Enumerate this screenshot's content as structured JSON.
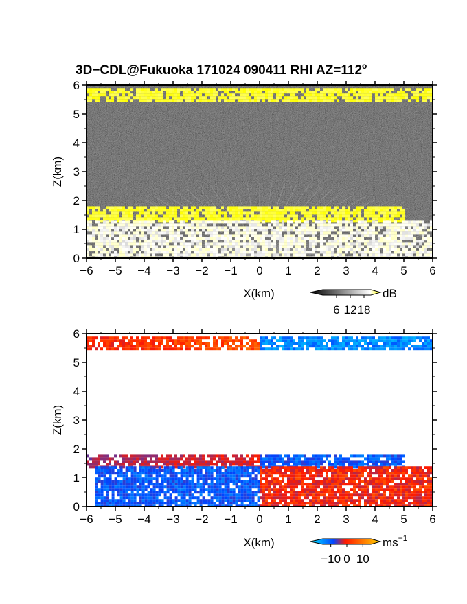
{
  "title": "3D−CDL@Fukuoka 171024 090411 RHI AZ=112",
  "title_superscript": "o",
  "chart_data": [
    {
      "type": "heatmap",
      "panel": "reflectivity",
      "xlabel": "X(km)",
      "ylabel": "Z(km)",
      "xlim": [
        -6,
        6
      ],
      "ylim": [
        0,
        6
      ],
      "xticks": [
        "−6",
        "−5",
        "−4",
        "−3",
        "−2",
        "−1",
        "0",
        "1",
        "2",
        "3",
        "4",
        "5",
        "6"
      ],
      "yticks": [
        "0",
        "1",
        "2",
        "3",
        "4",
        "5",
        "6"
      ],
      "colorbar": {
        "unit": "dB",
        "ticks": [
          "6",
          "12",
          "18"
        ],
        "tick_values": [
          6,
          12,
          18
        ],
        "range": [
          0,
          21
        ],
        "colors": [
          "#000000",
          "#ffffff",
          "#ffff00"
        ]
      },
      "features": [
        {
          "name": "cloud top layer",
          "z_range": [
            5.5,
            5.9
          ],
          "x_range": [
            -6,
            6
          ],
          "level_db": 19
        },
        {
          "name": "boundary layer top",
          "z_range": [
            1.3,
            1.8
          ],
          "x_range": [
            -6,
            5
          ],
          "level_db": 19
        },
        {
          "name": "near-surface echo",
          "z_range": [
            0,
            1.3
          ],
          "x_range": [
            -6,
            6
          ],
          "level_db": 11
        }
      ]
    },
    {
      "type": "heatmap",
      "panel": "doppler velocity",
      "xlabel": "X(km)",
      "ylabel": "Z(km)",
      "xlim": [
        -6,
        6
      ],
      "ylim": [
        0,
        6
      ],
      "xticks": [
        "−6",
        "−5",
        "−4",
        "−3",
        "−2",
        "−1",
        "0",
        "1",
        "2",
        "3",
        "4",
        "5",
        "6"
      ],
      "yticks": [
        "0",
        "1",
        "2",
        "3",
        "4",
        "5",
        "6"
      ],
      "colorbar": {
        "unit": "ms",
        "unit_superscript": "−1",
        "ticks": [
          "−10",
          "0",
          "10"
        ],
        "tick_values": [
          -10,
          0,
          10
        ],
        "range": [
          -15,
          15
        ],
        "colors": [
          "#00e5ff",
          "#0044ff",
          "#ff1a00",
          "#ffd400"
        ]
      },
      "features": [
        {
          "name": "upper layer west",
          "z_range": [
            5.5,
            5.9
          ],
          "x_range": [
            -6,
            0
          ],
          "velocity_ms": 8
        },
        {
          "name": "upper layer east",
          "z_range": [
            5.5,
            5.9
          ],
          "x_range": [
            0,
            6
          ],
          "velocity_ms": -9
        },
        {
          "name": "inversion layer west",
          "z_range": [
            1.4,
            1.8
          ],
          "x_range": [
            -6,
            0
          ],
          "velocity_ms": 4
        },
        {
          "name": "inversion layer east",
          "z_range": [
            1.4,
            1.8
          ],
          "x_range": [
            0,
            5
          ],
          "velocity_ms": -6
        },
        {
          "name": "boundary layer west",
          "z_range": [
            0,
            1.4
          ],
          "x_range": [
            -5.7,
            0
          ],
          "velocity_ms": -6
        },
        {
          "name": "boundary layer east",
          "z_range": [
            0,
            1.4
          ],
          "x_range": [
            0,
            6
          ],
          "velocity_ms": 5
        }
      ]
    }
  ]
}
